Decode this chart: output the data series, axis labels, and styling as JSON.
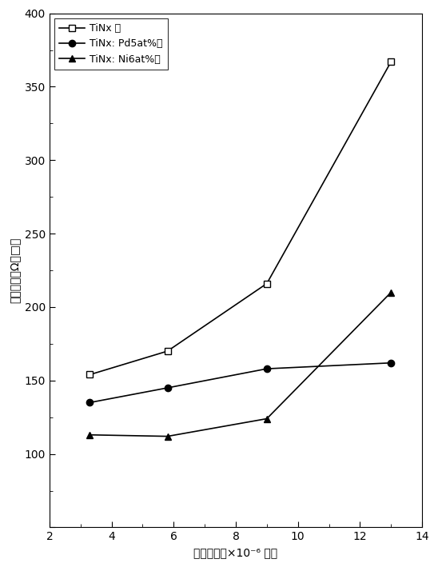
{
  "x": [
    3.3,
    5.8,
    9.0,
    13.0
  ],
  "series": [
    {
      "label": "TiNx 膜",
      "y": [
        154,
        170,
        216,
        367
      ],
      "marker": "s",
      "marker_face": "white",
      "marker_edge": "black",
      "color": "black",
      "linestyle": "-"
    },
    {
      "label": "TiNx: Pd5at%膜",
      "y": [
        135,
        145,
        158,
        162
      ],
      "marker": "o",
      "marker_face": "black",
      "marker_edge": "black",
      "color": "black",
      "linestyle": "-"
    },
    {
      "label": "TiNx: Ni6at%膜",
      "y": [
        113,
        112,
        124,
        210
      ],
      "marker": "^",
      "marker_face": "black",
      "marker_edge": "black",
      "color": "black",
      "linestyle": "-"
    }
  ],
  "xlabel": "残留気圧（×10⁻⁶ 毛）",
  "ylabel": "表面電阻（Ω／□）",
  "xlim": [
    2,
    14
  ],
  "ylim": [
    50,
    400
  ],
  "xticks": [
    2,
    4,
    6,
    8,
    10,
    12,
    14
  ],
  "yticks": [
    50,
    100,
    150,
    200,
    250,
    300,
    350,
    400
  ],
  "figsize": [
    5.48,
    7.09
  ],
  "dpi": 100
}
